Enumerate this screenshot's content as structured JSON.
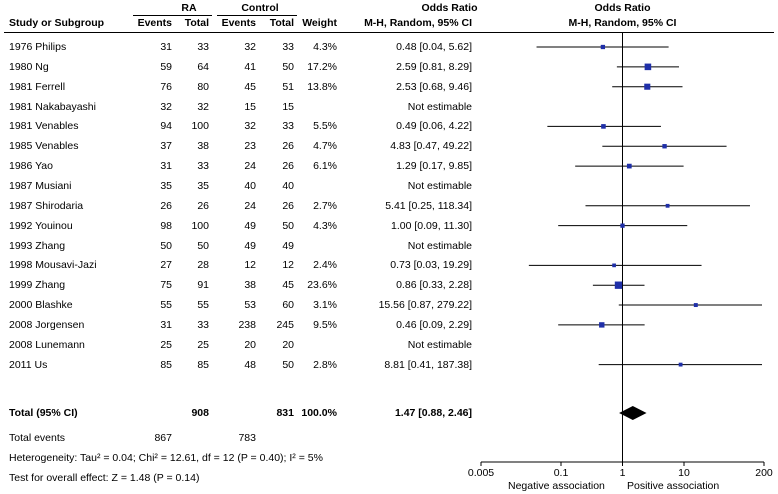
{
  "table": {
    "header": {
      "rows_label": "Study or Subgroup",
      "group1": "RA",
      "group2": "Control",
      "events": "Events",
      "total": "Total",
      "weight": "Weight",
      "or_title": "Odds Ratio",
      "or_method": "M-H, Random, 95% CI"
    },
    "studies": [
      {
        "name": "1976 Philips",
        "e1": "31",
        "t1": "33",
        "e2": "32",
        "t2": "33",
        "weight": "4.3%",
        "ci": "0.48 [0.04, 5.62]"
      },
      {
        "name": "1980 Ng",
        "e1": "59",
        "t1": "64",
        "e2": "41",
        "t2": "50",
        "weight": "17.2%",
        "ci": "2.59 [0.81, 8.29]"
      },
      {
        "name": "1981 Ferrell",
        "e1": "76",
        "t1": "80",
        "e2": "45",
        "t2": "51",
        "weight": "13.8%",
        "ci": "2.53 [0.68, 9.46]"
      },
      {
        "name": "1981 Nakabayashi",
        "e1": "32",
        "t1": "32",
        "e2": "15",
        "t2": "15",
        "weight": "",
        "ci": "Not estimable"
      },
      {
        "name": "1981 Venables",
        "e1": "94",
        "t1": "100",
        "e2": "32",
        "t2": "33",
        "weight": "5.5%",
        "ci": "0.49 [0.06, 4.22]"
      },
      {
        "name": "1985 Venables",
        "e1": "37",
        "t1": "38",
        "e2": "23",
        "t2": "26",
        "weight": "4.7%",
        "ci": "4.83 [0.47, 49.22]"
      },
      {
        "name": "1986 Yao",
        "e1": "31",
        "t1": "33",
        "e2": "24",
        "t2": "26",
        "weight": "6.1%",
        "ci": "1.29 [0.17, 9.85]"
      },
      {
        "name": "1987 Musiani",
        "e1": "35",
        "t1": "35",
        "e2": "40",
        "t2": "40",
        "weight": "",
        "ci": "Not estimable"
      },
      {
        "name": "1987 Shirodaria",
        "e1": "26",
        "t1": "26",
        "e2": "24",
        "t2": "26",
        "weight": "2.7%",
        "ci": "5.41 [0.25, 118.34]"
      },
      {
        "name": "1992 Youinou",
        "e1": "98",
        "t1": "100",
        "e2": "49",
        "t2": "50",
        "weight": "4.3%",
        "ci": "1.00 [0.09, 11.30]"
      },
      {
        "name": "1993 Zhang",
        "e1": "50",
        "t1": "50",
        "e2": "49",
        "t2": "49",
        "weight": "",
        "ci": "Not estimable"
      },
      {
        "name": "1998 Mousavi-Jazi",
        "e1": "27",
        "t1": "28",
        "e2": "12",
        "t2": "12",
        "weight": "2.4%",
        "ci": "0.73 [0.03, 19.29]"
      },
      {
        "name": "1999 Zhang",
        "e1": "75",
        "t1": "91",
        "e2": "38",
        "t2": "45",
        "weight": "23.6%",
        "ci": "0.86 [0.33, 2.28]"
      },
      {
        "name": "2000 Blashke",
        "e1": "55",
        "t1": "55",
        "e2": "53",
        "t2": "60",
        "weight": "3.1%",
        "ci": "15.56 [0.87, 279.22]"
      },
      {
        "name": "2008 Jorgensen",
        "e1": "31",
        "t1": "33",
        "e2": "238",
        "t2": "245",
        "weight": "9.5%",
        "ci": "0.46 [0.09, 2.29]"
      },
      {
        "name": "2008 Lunemann",
        "e1": "25",
        "t1": "25",
        "e2": "20",
        "t2": "20",
        "weight": "",
        "ci": "Not estimable"
      },
      {
        "name": "2011 Us",
        "e1": "85",
        "t1": "85",
        "e2": "48",
        "t2": "50",
        "weight": "2.8%",
        "ci": "8.81 [0.41, 187.38]"
      }
    ],
    "total_row": {
      "name": "Total (95% CI)",
      "t1": "908",
      "t2": "831",
      "weight": "100.0%",
      "ci": "1.47 [0.88, 2.46]"
    },
    "total_events": {
      "label": "Total events",
      "e1": "867",
      "e2": "783"
    },
    "heterogeneity": "Heterogeneity: Tau² = 0.04; Chi² = 12.61, df = 12 (P = 0.40); I² = 5%",
    "overall_effect": "Test for overall effect: Z = 1.48 (P = 0.14)"
  },
  "chart_data": {
    "type": "forest",
    "title": "Odds Ratio",
    "subtitle": "M-H, Random, 95% CI",
    "scale": "log",
    "xlim": [
      0.005,
      200
    ],
    "ticks": [
      "0.005",
      "0.1",
      "1",
      "10",
      "200"
    ],
    "tick_values": [
      0.005,
      0.1,
      1,
      10,
      200
    ],
    "null_value": 1,
    "xlabel_left": "Negative association",
    "xlabel_right": "Positive association",
    "estimates": [
      {
        "study": "1976 Philips",
        "or": 0.48,
        "lo": 0.04,
        "hi": 5.62,
        "weight": 4.3
      },
      {
        "study": "1980 Ng",
        "or": 2.59,
        "lo": 0.81,
        "hi": 8.29,
        "weight": 17.2
      },
      {
        "study": "1981 Ferrell",
        "or": 2.53,
        "lo": 0.68,
        "hi": 9.46,
        "weight": 13.8
      },
      {
        "study": "1981 Nakabayashi",
        "or": null,
        "lo": null,
        "hi": null,
        "weight": null
      },
      {
        "study": "1981 Venables",
        "or": 0.49,
        "lo": 0.06,
        "hi": 4.22,
        "weight": 5.5
      },
      {
        "study": "1985 Venables",
        "or": 4.83,
        "lo": 0.47,
        "hi": 49.22,
        "weight": 4.7
      },
      {
        "study": "1986 Yao",
        "or": 1.29,
        "lo": 0.17,
        "hi": 9.85,
        "weight": 6.1
      },
      {
        "study": "1987 Musiani",
        "or": null,
        "lo": null,
        "hi": null,
        "weight": null
      },
      {
        "study": "1987 Shirodaria",
        "or": 5.41,
        "lo": 0.25,
        "hi": 118.34,
        "weight": 2.7
      },
      {
        "study": "1992 Youinou",
        "or": 1.0,
        "lo": 0.09,
        "hi": 11.3,
        "weight": 4.3
      },
      {
        "study": "1993 Zhang",
        "or": null,
        "lo": null,
        "hi": null,
        "weight": null
      },
      {
        "study": "1998 Mousavi-Jazi",
        "or": 0.73,
        "lo": 0.03,
        "hi": 19.29,
        "weight": 2.4
      },
      {
        "study": "1999 Zhang",
        "or": 0.86,
        "lo": 0.33,
        "hi": 2.28,
        "weight": 23.6
      },
      {
        "study": "2000 Blashke",
        "or": 15.56,
        "lo": 0.87,
        "hi": 279.22,
        "weight": 3.1
      },
      {
        "study": "2008 Jorgensen",
        "or": 0.46,
        "lo": 0.09,
        "hi": 2.29,
        "weight": 9.5
      },
      {
        "study": "2008 Lunemann",
        "or": null,
        "lo": null,
        "hi": null,
        "weight": null
      },
      {
        "study": "2011 Us",
        "or": 8.81,
        "lo": 0.41,
        "hi": 187.38,
        "weight": 2.8
      }
    ],
    "pooled": {
      "or": 1.47,
      "lo": 0.88,
      "hi": 2.46
    },
    "colors": {
      "square": "#1f2fa8",
      "line": "#000000",
      "diamond": "#000000"
    }
  }
}
